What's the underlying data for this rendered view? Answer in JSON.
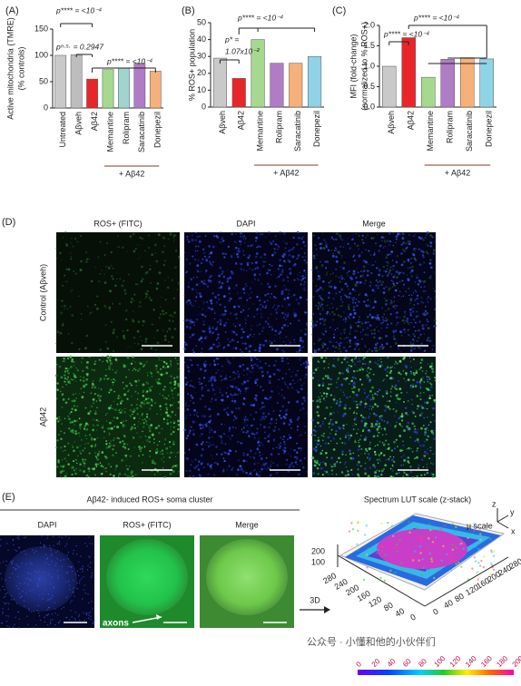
{
  "chart_data": [
    {
      "type": "bar",
      "panel": "(A)",
      "y_label": "Active mitochondria (TMRE)",
      "y_sublabel": "(% controls)",
      "categories": [
        "Untreated",
        "Aβveh",
        "Aβ42",
        "Memantine",
        "Rolipram",
        "Saracatinib",
        "Donepezil"
      ],
      "values": [
        100,
        101,
        55,
        73,
        76,
        85,
        70
      ],
      "colors": [
        "#c9c9c9",
        "#bdbdbd",
        "#e8262a",
        "#a6d98f",
        "#9fd4cf",
        "#b07cc6",
        "#f6b07a"
      ],
      "ylim": [
        0,
        150
      ],
      "yticks": [
        0,
        50,
        100,
        150
      ],
      "annotations": [
        "p**** = <10⁻⁴",
        "pⁿ·ˢ· = 0.2947",
        "p**** = <10⁻⁴"
      ],
      "group_label": "+ Aβ42"
    },
    {
      "type": "bar",
      "panel": "(B)",
      "y_label": "% ROS+ population",
      "categories": [
        "Aβveh",
        "Aβ42",
        "Memantine",
        "Rolipram",
        "Saracatinib",
        "Donepezil"
      ],
      "values": [
        29,
        17,
        40,
        26,
        26,
        30
      ],
      "colors": [
        "#c9c9c9",
        "#e8262a",
        "#a6d98f",
        "#b07cc6",
        "#f6b07a",
        "#8fd3e6"
      ],
      "ylim": [
        0,
        50
      ],
      "yticks": [
        0,
        10,
        20,
        30,
        40,
        50
      ],
      "annotations": [
        "p**** = <10⁻⁴",
        "p* =",
        "1.07x10⁻²"
      ],
      "group_label": "+ Aβ42"
    },
    {
      "type": "bar",
      "panel": "(C)",
      "y_label": "MFI (fold-change)",
      "y_sublabel": "(normalized to % ROS+)",
      "categories": [
        "Aβveh",
        "Aβ42",
        "Memantine",
        "Rolipram",
        "Saracatinib",
        "Donepezil"
      ],
      "values": [
        1.0,
        1.7,
        0.73,
        1.17,
        1.21,
        1.18
      ],
      "colors": [
        "#c9c9c9",
        "#e8262a",
        "#a6d98f",
        "#b07cc6",
        "#f6b07a",
        "#8fd3e6"
      ],
      "ylim": [
        0,
        2.0
      ],
      "yticks": [
        {
          "value": 0,
          "label": "0.0"
        },
        {
          "value": 0.5,
          "label": "0.5"
        },
        {
          "value": 1,
          "label": "1.0"
        },
        {
          "value": 1.5,
          "label": "1.5"
        },
        {
          "value": 2,
          "label": "2.0"
        }
      ],
      "annotations": [
        "p**** = <10⁻⁴",
        "p**** = <10⁻⁴"
      ],
      "group_label": "+ Aβ42"
    }
  ],
  "panel_d": {
    "label": "(D)",
    "columns": [
      "ROS+ (FITC)",
      "DAPI",
      "Merge"
    ],
    "rows": [
      "Control (Aβveh)",
      "Aβ42"
    ]
  },
  "panel_e": {
    "label": "(E)",
    "title": "Aβ42- induced ROS+ soma cluster",
    "columns": [
      "DAPI",
      "ROS+ (FITC)",
      "Merge"
    ],
    "arrow_label": "axons",
    "transition_label": "3D",
    "plot_title": "Spectrum LUT scale (z-stack)",
    "scale_label": "µ scale",
    "axes": [
      "z",
      "y",
      "x"
    ],
    "z_ticks": [
      200,
      100
    ],
    "left_ticks": [
      280,
      240,
      200,
      160,
      120,
      80,
      40,
      0
    ],
    "right_ticks": [
      0,
      40,
      80,
      120,
      160,
      200,
      240,
      280
    ],
    "colorbar_ticks": [
      0,
      20,
      40,
      60,
      80,
      100,
      120,
      140,
      160,
      180,
      200
    ]
  },
  "watermark": "公众号 · 小懂和他的小伙伴们"
}
